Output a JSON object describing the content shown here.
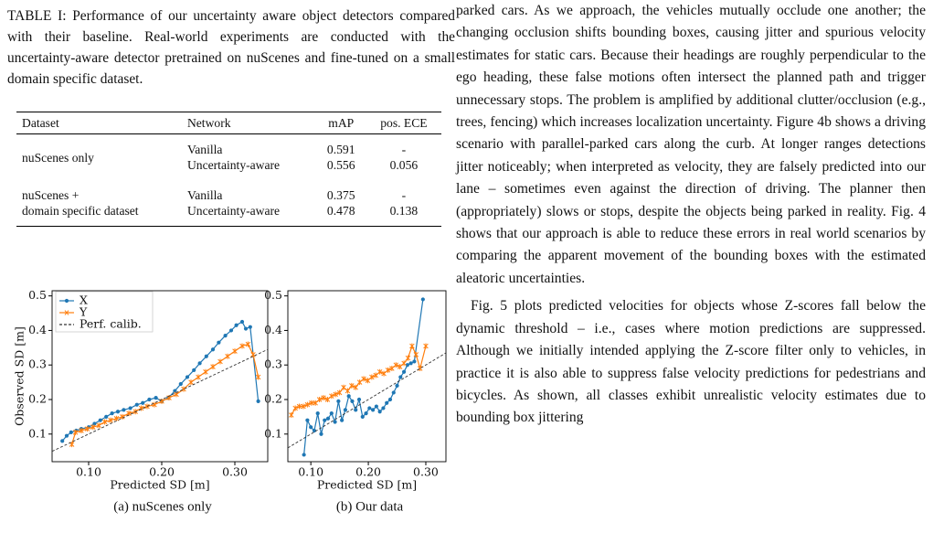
{
  "table": {
    "caption": "TABLE I: Performance of our uncertainty aware object detectors compared with their baseline. Real-world experiments are conducted with the uncertainty-aware detector pretrained on nuScenes and fine-tuned on a small domain specific dataset.",
    "header": [
      "Dataset",
      "Network",
      "mAP",
      "pos. ECE"
    ],
    "groups": [
      {
        "dataset": [
          "nuScenes only"
        ],
        "rows": [
          [
            "Vanilla",
            0.591,
            "-"
          ],
          [
            "Uncertainty-aware",
            0.556,
            0.056
          ]
        ]
      },
      {
        "dataset": [
          "nuScenes +",
          "domain specific dataset"
        ],
        "rows": [
          [
            "Vanilla",
            0.375,
            "-"
          ],
          [
            "Uncertainty-aware",
            0.478,
            0.138
          ]
        ]
      }
    ]
  },
  "chart_data": [
    {
      "type": "line",
      "caption": "(a) nuScenes only",
      "xlabel": "Predicted SD [m]",
      "ylabel": "Observed SD [m]",
      "xlim": [
        0.05,
        0.345
      ],
      "ylim": [
        0.02,
        0.515
      ],
      "xticks": [
        {
          "value": 0.1,
          "label": "0.10"
        },
        {
          "value": 0.2,
          "label": "0.20"
        },
        {
          "value": 0.3,
          "label": "0.30"
        }
      ],
      "yticks": [
        0.1,
        0.2,
        0.3,
        0.4,
        0.5
      ],
      "legend": "upper left",
      "series": [
        {
          "name": "X",
          "color": "#1f77b4",
          "marker": "dot",
          "x": [
            0.064,
            0.07,
            0.076,
            0.083,
            0.09,
            0.1,
            0.108,
            0.116,
            0.124,
            0.132,
            0.14,
            0.148,
            0.157,
            0.166,
            0.174,
            0.183,
            0.192,
            0.2,
            0.209,
            0.218,
            0.226,
            0.235,
            0.244,
            0.252,
            0.261,
            0.27,
            0.278,
            0.287,
            0.295,
            0.302,
            0.31,
            0.315,
            0.321,
            0.332
          ],
          "values": [
            0.08,
            0.095,
            0.105,
            0.11,
            0.115,
            0.12,
            0.13,
            0.14,
            0.15,
            0.16,
            0.165,
            0.17,
            0.175,
            0.185,
            0.19,
            0.2,
            0.205,
            0.195,
            0.205,
            0.225,
            0.245,
            0.265,
            0.285,
            0.305,
            0.325,
            0.345,
            0.365,
            0.385,
            0.4,
            0.415,
            0.425,
            0.405,
            0.41,
            0.195
          ]
        },
        {
          "name": "Y",
          "color": "#ff7f0e",
          "marker": "star",
          "x": [
            0.077,
            0.082,
            0.09,
            0.098,
            0.106,
            0.114,
            0.122,
            0.13,
            0.138,
            0.146,
            0.155,
            0.164,
            0.172,
            0.18,
            0.19,
            0.2,
            0.21,
            0.22,
            0.23,
            0.24,
            0.25,
            0.26,
            0.27,
            0.28,
            0.29,
            0.3,
            0.31,
            0.318,
            0.325,
            0.332
          ],
          "values": [
            0.07,
            0.105,
            0.11,
            0.115,
            0.12,
            0.125,
            0.135,
            0.14,
            0.145,
            0.15,
            0.16,
            0.165,
            0.175,
            0.18,
            0.185,
            0.195,
            0.205,
            0.215,
            0.23,
            0.25,
            0.265,
            0.28,
            0.295,
            0.31,
            0.325,
            0.34,
            0.355,
            0.36,
            0.33,
            0.265
          ]
        },
        {
          "name": "Perf. calib.",
          "color": "#333333",
          "marker": "none",
          "linestyle": "dashed",
          "x": [
            0.05,
            0.345
          ],
          "values": [
            0.05,
            0.345
          ]
        }
      ]
    },
    {
      "type": "line",
      "caption": "(b) Our data",
      "xlabel": "Predicted SD [m]",
      "xlim": [
        0.06,
        0.335
      ],
      "ylim": [
        0.02,
        0.515
      ],
      "xticks": [
        {
          "value": 0.1,
          "label": "0.10"
        },
        {
          "value": 0.2,
          "label": "0.20"
        },
        {
          "value": 0.3,
          "label": "0.30"
        }
      ],
      "yticks": [
        0.1,
        0.2,
        0.3,
        0.4,
        0.5
      ],
      "series": [
        {
          "color": "#1f77b4",
          "marker": "dot",
          "x": [
            0.088,
            0.094,
            0.1,
            0.106,
            0.112,
            0.118,
            0.124,
            0.13,
            0.136,
            0.142,
            0.148,
            0.154,
            0.16,
            0.166,
            0.172,
            0.178,
            0.184,
            0.19,
            0.196,
            0.202,
            0.208,
            0.214,
            0.22,
            0.226,
            0.232,
            0.238,
            0.244,
            0.25,
            0.256,
            0.262,
            0.268,
            0.274,
            0.28,
            0.295
          ],
          "values": [
            0.04,
            0.14,
            0.12,
            0.11,
            0.16,
            0.1,
            0.14,
            0.145,
            0.16,
            0.135,
            0.195,
            0.14,
            0.17,
            0.21,
            0.195,
            0.17,
            0.2,
            0.15,
            0.16,
            0.175,
            0.17,
            0.18,
            0.165,
            0.175,
            0.19,
            0.2,
            0.22,
            0.24,
            0.265,
            0.28,
            0.3,
            0.305,
            0.31,
            0.49
          ]
        },
        {
          "color": "#ff7f0e",
          "marker": "star",
          "x": [
            0.066,
            0.073,
            0.08,
            0.087,
            0.094,
            0.101,
            0.108,
            0.115,
            0.122,
            0.129,
            0.136,
            0.143,
            0.15,
            0.157,
            0.164,
            0.171,
            0.178,
            0.185,
            0.192,
            0.199,
            0.206,
            0.213,
            0.22,
            0.227,
            0.234,
            0.241,
            0.248,
            0.255,
            0.262,
            0.269,
            0.276,
            0.283,
            0.29,
            0.3
          ],
          "values": [
            0.155,
            0.175,
            0.18,
            0.18,
            0.185,
            0.19,
            0.19,
            0.2,
            0.205,
            0.2,
            0.21,
            0.215,
            0.22,
            0.235,
            0.225,
            0.24,
            0.235,
            0.25,
            0.26,
            0.255,
            0.265,
            0.27,
            0.28,
            0.275,
            0.285,
            0.29,
            0.3,
            0.295,
            0.305,
            0.32,
            0.355,
            0.33,
            0.29,
            0.355
          ]
        },
        {
          "color": "#333333",
          "marker": "none",
          "linestyle": "dashed",
          "x": [
            0.06,
            0.335
          ],
          "values": [
            0.06,
            0.335
          ]
        }
      ]
    }
  ],
  "text": {
    "paragraphs": [
      "parked cars. As we approach, the vehicles mutually occlude one another; the changing occlusion shifts bounding boxes, causing jitter and spurious velocity estimates for static cars. Because their headings are roughly perpendicular to the ego heading, these false motions often intersect the planned path and trigger unnecessary stops. The problem is amplified by additional clutter/occlusion (e.g., trees, fencing) which increases localization uncertainty. Figure 4b shows a driving scenario with parallel-parked cars along the curb. At longer ranges detections jitter noticeably; when interpreted as velocity, they are falsely predicted into our lane – sometimes even against the direction of driving. The planner then (appropriately) slows or stops, despite the objects being parked in reality. Fig. 4 shows that our approach is able to reduce these errors in real world scenarios by comparing the apparent movement of the bounding boxes with the estimated aleatoric uncertainties.",
      "Fig. 5 plots predicted velocities for objects whose Z-scores fall below the dynamic threshold – i.e., cases where motion predictions are suppressed. Although we initially intended applying the Z-score filter only to vehicles, in practice it is also able to suppress false velocity predictions for pedestrians and bicycles. As shown, all classes exhibit unrealistic velocity estimates due to bounding box jittering"
    ]
  }
}
